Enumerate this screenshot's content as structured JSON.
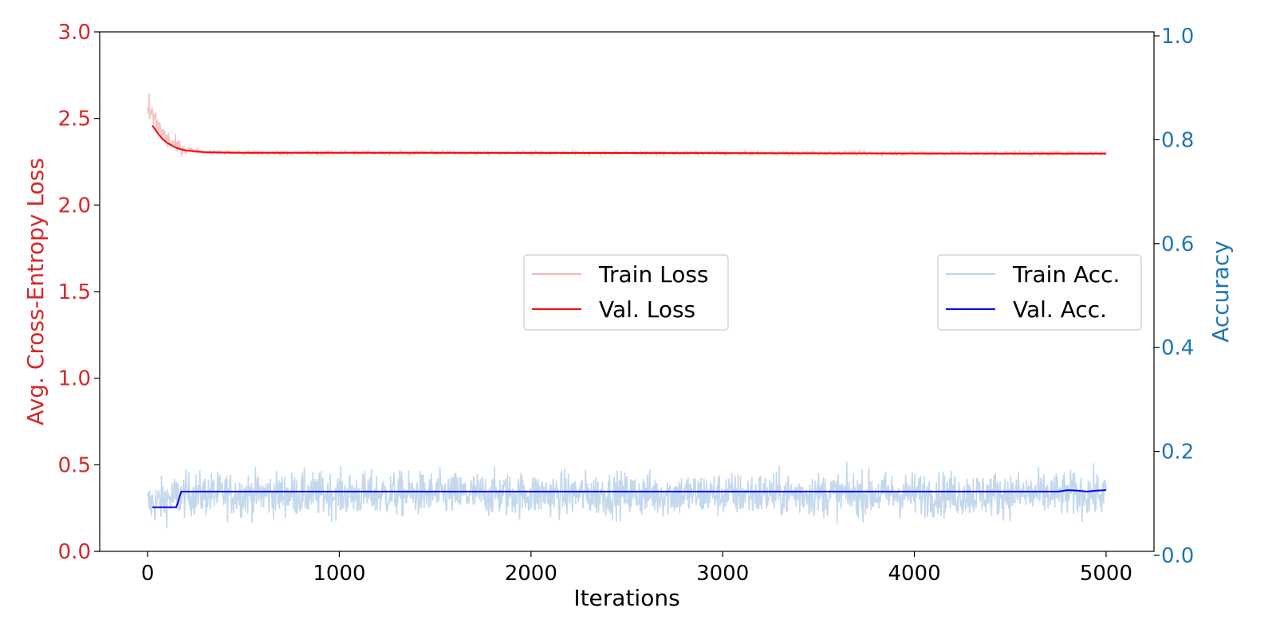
{
  "chart_data": {
    "type": "line",
    "title": "",
    "xlabel": "Iterations",
    "ylabel_left": "Avg. Cross-Entropy Loss",
    "ylabel_right": "Accuracy",
    "xlim": [
      -250,
      5250
    ],
    "ylim_left": [
      0,
      3.0
    ],
    "ylim_right": [
      0,
      1.0
    ],
    "x_ticks": [
      0,
      1000,
      2000,
      3000,
      4000,
      5000
    ],
    "x_tick_labels": [
      "0",
      "1000",
      "2000",
      "3000",
      "4000",
      "5000"
    ],
    "y_left_ticks": [
      0.0,
      0.5,
      1.0,
      1.5,
      2.0,
      2.5,
      3.0
    ],
    "y_left_tick_labels": [
      "0.0",
      "0.5",
      "1.0",
      "1.5",
      "2.0",
      "2.5",
      "3.0"
    ],
    "y_right_ticks": [
      0.0,
      0.2,
      0.4,
      0.6,
      0.8,
      1.0
    ],
    "y_right_tick_labels": [
      "0.0",
      "0.2",
      "0.4",
      "0.6",
      "0.8",
      "1.0"
    ],
    "grid": false,
    "colors": {
      "left_axis": "#d62728",
      "right_axis": "#1f77b4",
      "train_loss": "#f4b6b6",
      "val_loss": "#ff0000",
      "train_acc": "#bcd4ea",
      "val_acc": "#0000ff"
    },
    "legends": [
      {
        "placement": "center",
        "entries": [
          "Train Loss",
          "Val. Loss"
        ]
      },
      {
        "placement": "center-right",
        "entries": [
          "Train Acc.",
          "Val. Acc."
        ]
      }
    ],
    "series": [
      {
        "name": "Train Loss",
        "axis": "left",
        "style": "noisy",
        "x": [
          0,
          25,
          50,
          75,
          100,
          150,
          200,
          300,
          500,
          1000,
          2000,
          3000,
          4000,
          5000
        ],
        "values": [
          2.55,
          2.52,
          2.47,
          2.42,
          2.38,
          2.34,
          2.32,
          2.305,
          2.302,
          2.302,
          2.301,
          2.3,
          2.299,
          2.298
        ],
        "noise": 0.008
      },
      {
        "name": "Val. Loss",
        "axis": "left",
        "x": [
          25,
          50,
          75,
          100,
          125,
          150,
          175,
          200,
          250,
          300,
          400,
          500,
          1000,
          2000,
          3000,
          4000,
          5000
        ],
        "values": [
          2.46,
          2.42,
          2.385,
          2.36,
          2.345,
          2.33,
          2.322,
          2.316,
          2.31,
          2.305,
          2.303,
          2.302,
          2.302,
          2.301,
          2.3,
          2.298,
          2.297
        ]
      },
      {
        "name": "Train Acc.",
        "axis": "right",
        "style": "noisy",
        "x": [
          0,
          200,
          5000
        ],
        "values": [
          0.09,
          0.11,
          0.11
        ],
        "noise": 0.03
      },
      {
        "name": "Val. Acc.",
        "axis": "right",
        "x": [
          25,
          150,
          175,
          4750,
          4800,
          4850,
          4900,
          4950,
          5000
        ],
        "values": [
          0.085,
          0.085,
          0.115,
          0.115,
          0.118,
          0.117,
          0.115,
          0.117,
          0.118
        ]
      }
    ]
  }
}
